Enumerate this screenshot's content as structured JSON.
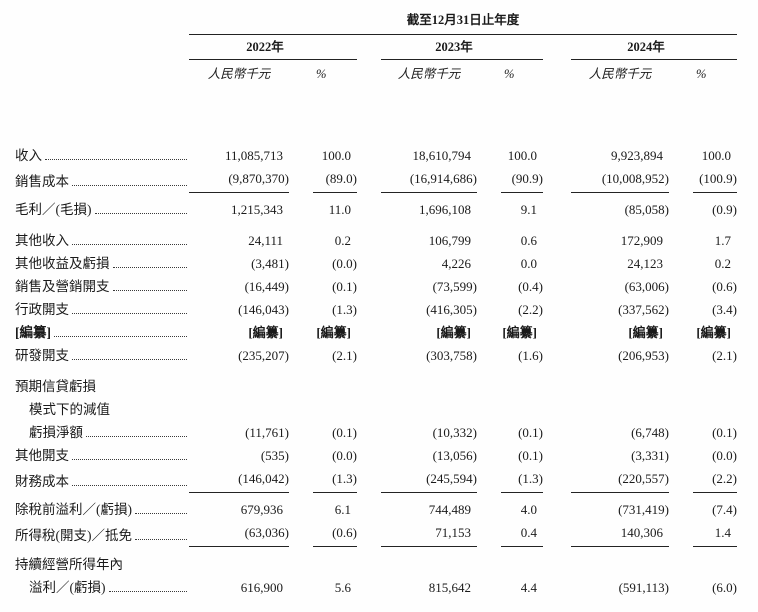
{
  "page": {
    "background": "#fefefe",
    "text_color": "#1a1a1a",
    "line_color": "#222222"
  },
  "header": {
    "title": "截至12月31日止年度",
    "year_groups": [
      {
        "year": "2022年",
        "unit": "人民幣千元",
        "pct": "%"
      },
      {
        "year": "2023年",
        "unit": "人民幣千元",
        "pct": "%"
      },
      {
        "year": "2024年",
        "unit": "人民幣千元",
        "pct": "%"
      }
    ]
  },
  "table": {
    "columns": [
      "2022年 人民幣千元",
      "2022年 %",
      "2023年 人民幣千元",
      "2023年 %",
      "2024年 人民幣千元",
      "2024年 %"
    ],
    "rows": [
      {
        "label": "收入",
        "values": [
          "11,085,713",
          "100.0",
          "18,610,794",
          "100.0",
          "9,923,894",
          "100.0"
        ]
      },
      {
        "label": "銷售成本",
        "rule_below": true,
        "values": [
          "(9,870,370)",
          "(89.0)",
          "(16,914,686)",
          "(90.9)",
          "(10,008,952)",
          "(100.9)"
        ]
      },
      {
        "label": "毛利／(毛損)",
        "values": [
          "1,215,343",
          "11.0",
          "1,696,108",
          "9.1",
          "(85,058)",
          "(0.9)"
        ]
      },
      {
        "label": "其他收入",
        "gap": "md",
        "values": [
          "24,111",
          "0.2",
          "106,799",
          "0.6",
          "172,909",
          "1.7"
        ]
      },
      {
        "label": "其他收益及虧損",
        "values": [
          "(3,481)",
          "(0.0)",
          "4,226",
          "0.0",
          "24,123",
          "0.2"
        ]
      },
      {
        "label": "銷售及營銷開支",
        "values": [
          "(16,449)",
          "(0.1)",
          "(73,599)",
          "(0.4)",
          "(63,006)",
          "(0.6)"
        ]
      },
      {
        "label": "行政開支",
        "values": [
          "(146,043)",
          "(1.3)",
          "(416,305)",
          "(2.2)",
          "(337,562)",
          "(3.4)"
        ]
      },
      {
        "label": "[編纂]",
        "bold": true,
        "values": [
          "[編纂]",
          "[編纂]",
          "[編纂]",
          "[編纂]",
          "[編纂]",
          "[編纂]"
        ]
      },
      {
        "label": "研發開支",
        "values": [
          "(235,207)",
          "(2.1)",
          "(303,758)",
          "(1.6)",
          "(206,953)",
          "(2.1)"
        ]
      },
      {
        "label_lines": [
          "預期信貸虧損",
          "模式下的減值",
          "虧損淨額"
        ],
        "gap": "md",
        "values": [
          "(11,761)",
          "(0.1)",
          "(10,332)",
          "(0.1)",
          "(6,748)",
          "(0.1)"
        ]
      },
      {
        "label": "其他開支",
        "values": [
          "(535)",
          "(0.0)",
          "(13,056)",
          "(0.1)",
          "(3,331)",
          "(0.0)"
        ]
      },
      {
        "label": "財務成本",
        "rule_below": true,
        "values": [
          "(146,042)",
          "(1.3)",
          "(245,594)",
          "(1.3)",
          "(220,557)",
          "(2.2)"
        ]
      },
      {
        "label": "除稅前溢利／(虧損)",
        "values": [
          "679,936",
          "6.1",
          "744,489",
          "4.0",
          "(731,419)",
          "(7.4)"
        ]
      },
      {
        "label": "所得稅(開支)／抵免",
        "rule_below": true,
        "values": [
          "(63,036)",
          "(0.6)",
          "71,153",
          "0.4",
          "140,306",
          "1.4"
        ]
      },
      {
        "label_lines": [
          "持續經營所得年內",
          "溢利／(虧損)"
        ],
        "gap": "sm",
        "values": [
          "616,900",
          "5.6",
          "815,642",
          "4.4",
          "(591,113)",
          "(6.0)"
        ]
      }
    ]
  }
}
